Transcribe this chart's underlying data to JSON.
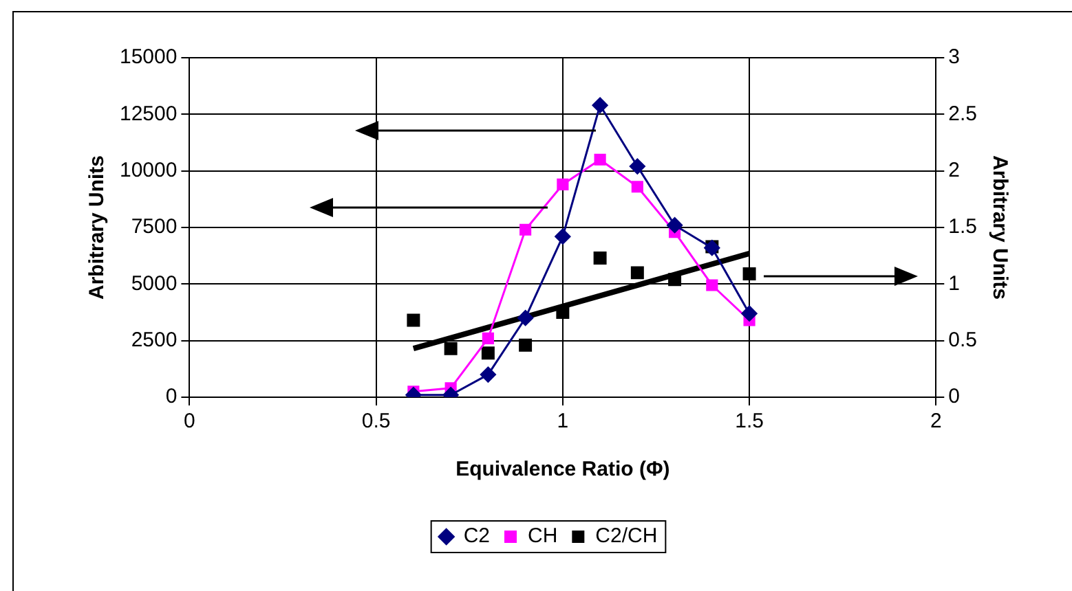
{
  "chart_data": {
    "type": "line",
    "xlabel": "Equivalence Ratio (Φ)",
    "ylabel": "Arbitrary Units",
    "y2label": "Arbitrary Units",
    "x": [
      0.6,
      0.7,
      0.8,
      0.9,
      1.0,
      1.1,
      1.2,
      1.3,
      1.4,
      1.5
    ],
    "series": [
      {
        "name": "C2",
        "color": "#000080",
        "marker": "diamond",
        "values": [
          100,
          100,
          1000,
          3500,
          7100,
          12900,
          10200,
          7600,
          6600,
          3700
        ]
      },
      {
        "name": "CH",
        "color": "#ff00ff",
        "marker": "square",
        "values": [
          250,
          400,
          2600,
          7400,
          9400,
          10500,
          9300,
          7300,
          4950,
          3400
        ]
      },
      {
        "name": "C2/CH",
        "type": "scatter",
        "color": "#000000",
        "marker": "square",
        "axis": "y2",
        "values": [
          0.68,
          0.43,
          0.39,
          0.46,
          0.75,
          1.23,
          1.1,
          1.04,
          1.33,
          1.09
        ]
      },
      {
        "color": "#000000",
        "marker": "none",
        "axis": "y2",
        "x": [
          0.6,
          1.5
        ],
        "values": [
          0.43,
          1.27
        ]
      }
    ],
    "xlim": [
      0,
      2
    ],
    "xticks": [
      0,
      0.5,
      1,
      1.5,
      2
    ],
    "ylim": [
      0,
      15000
    ],
    "yticks": [
      0,
      2500,
      5000,
      7500,
      10000,
      12500,
      15000
    ],
    "y2lim": [
      0,
      3
    ],
    "y2ticks": [
      0,
      0.5,
      1,
      1.5,
      2,
      2.5,
      3
    ],
    "grid": true,
    "legend": "bottom"
  }
}
